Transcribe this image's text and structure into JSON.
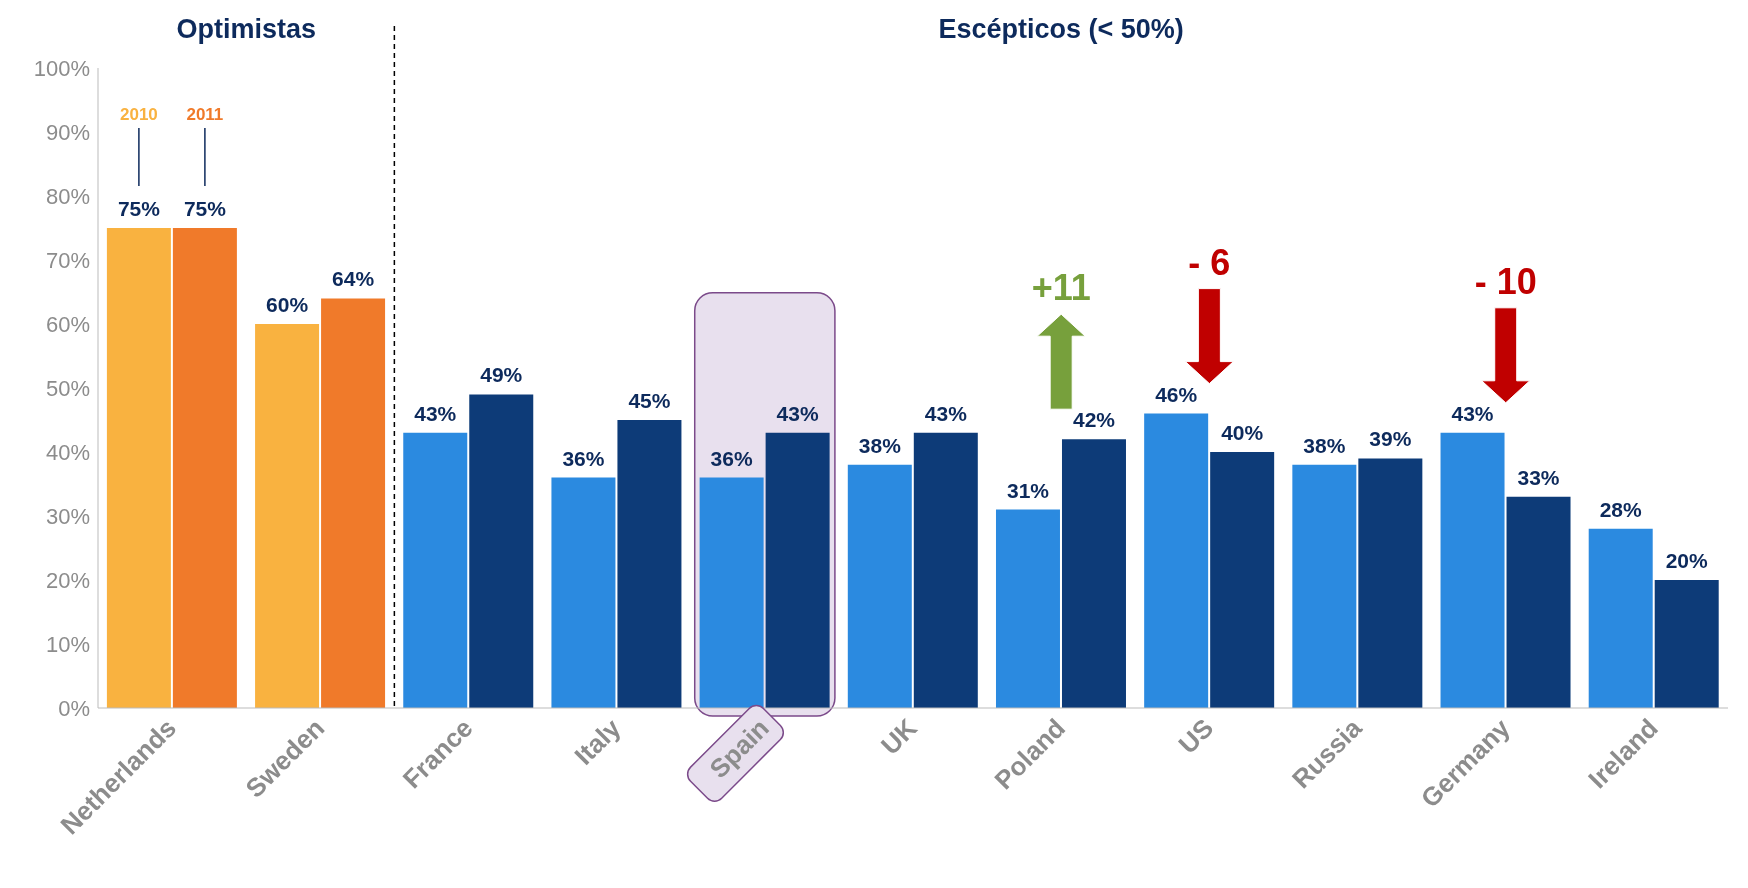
{
  "chart_data": {
    "type": "bar",
    "categories": [
      "Netherlands",
      "Sweden",
      "France",
      "Italy",
      "Spain",
      "UK",
      "Poland",
      "US",
      "Russia",
      "Germany",
      "Ireland"
    ],
    "series": [
      {
        "name": "2010",
        "colors": [
          "#f9b240",
          "#f9b240",
          "#2b8ae0",
          "#2b8ae0",
          "#2b8ae0",
          "#2b8ae0",
          "#2b8ae0",
          "#2b8ae0",
          "#2b8ae0",
          "#2b8ae0",
          "#2b8ae0"
        ],
        "values": [
          75,
          60,
          43,
          36,
          36,
          38,
          31,
          46,
          38,
          43,
          28
        ],
        "value_labels": [
          "75%",
          "60%",
          "43%",
          "36%",
          "36%",
          "38%",
          "31%",
          "46%",
          "38%",
          "43%",
          "28%"
        ]
      },
      {
        "name": "2011",
        "colors": [
          "#f07a2a",
          "#f07a2a",
          "#0d3b78",
          "#0d3b78",
          "#0d3b78",
          "#0d3b78",
          "#0d3b78",
          "#0d3b78",
          "#0d3b78",
          "#0d3b78",
          "#0d3b78"
        ],
        "values": [
          75,
          64,
          49,
          45,
          43,
          43,
          42,
          40,
          39,
          33,
          20
        ],
        "value_labels": [
          "75%",
          "64%",
          "49%",
          "45%",
          "43%",
          "43%",
          "42%",
          "40%",
          "39%",
          "33%",
          "20%"
        ]
      }
    ],
    "ylim": [
      0,
      100
    ],
    "yticks": [
      {
        "value": 0,
        "label": "0%"
      },
      {
        "value": 10,
        "label": "10%"
      },
      {
        "value": 20,
        "label": "20%"
      },
      {
        "value": 30,
        "label": "30%"
      },
      {
        "value": 40,
        "label": "40%"
      },
      {
        "value": 50,
        "label": "50%"
      },
      {
        "value": 60,
        "label": "60%"
      },
      {
        "value": 70,
        "label": "70%"
      },
      {
        "value": 80,
        "label": "80%"
      },
      {
        "value": 90,
        "label": "90%"
      },
      {
        "value": 100,
        "label": "100%"
      }
    ],
    "bands": [
      {
        "axis": "x",
        "from": "Spain",
        "to": "Spain",
        "color": "#e8e0ee"
      }
    ],
    "annotations": [
      "Optimistas",
      "Escépticos (< 50%)",
      "+11",
      "- 6",
      "- 10"
    ],
    "grid": false,
    "legend": false
  }
}
